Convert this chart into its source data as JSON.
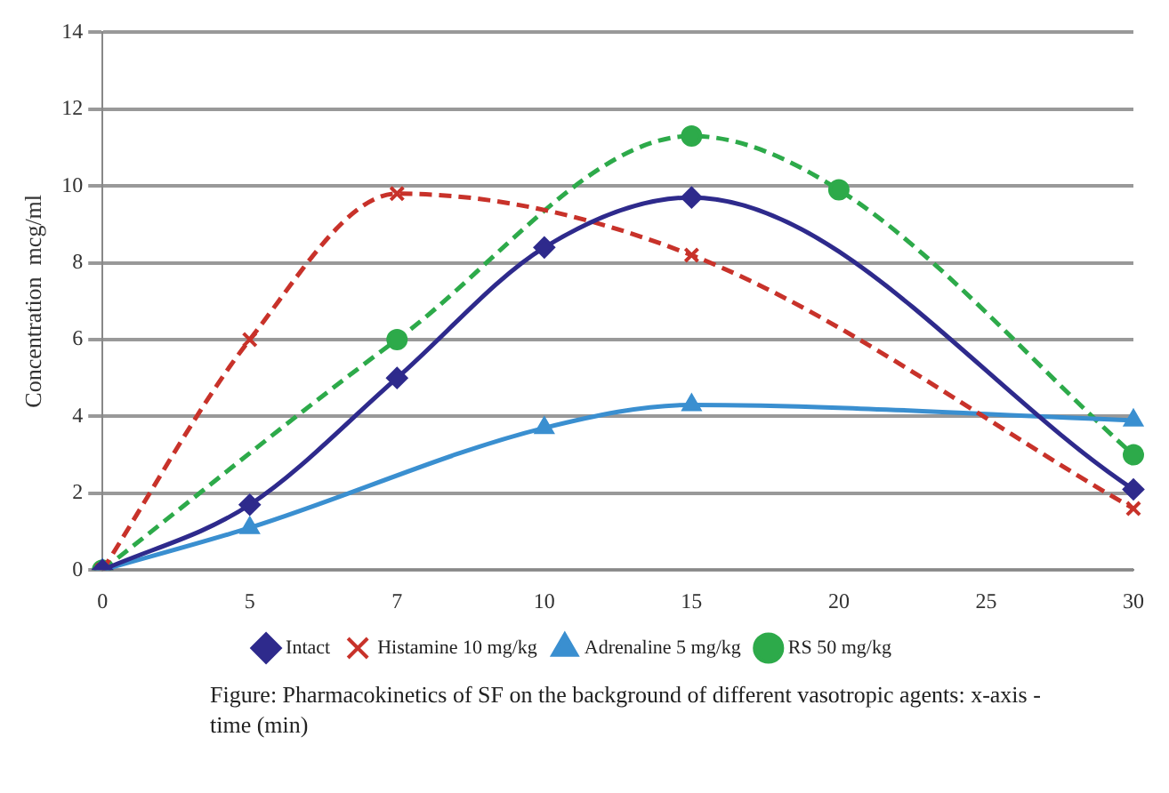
{
  "chart_data": {
    "type": "line",
    "ylabel": "Concentration  mcg/ml",
    "categories": [
      "0",
      "5",
      "7",
      "10",
      "15",
      "20",
      "25",
      "30"
    ],
    "series": [
      {
        "name": "Intact",
        "color": "#2e2a8c",
        "marker": "diamond",
        "line_style": "solid",
        "values": [
          0,
          1.7,
          5.0,
          8.4,
          9.7,
          null,
          null,
          2.1
        ]
      },
      {
        "name": "Histamine 10 mg/kg",
        "color": "#c8322a",
        "marker": "cross",
        "line_style": "dashed",
        "values": [
          0,
          6.0,
          9.8,
          null,
          8.2,
          null,
          null,
          1.6
        ]
      },
      {
        "name": "Adrenaline 5 mg/kg",
        "color": "#3a8fd0",
        "marker": "triangle",
        "line_style": "solid",
        "values": [
          0,
          1.1,
          null,
          3.7,
          4.3,
          null,
          null,
          3.9
        ]
      },
      {
        "name": "RS 50 mg/kg",
        "color": "#2daa4a",
        "marker": "circle",
        "line_style": "dashed",
        "values": [
          0,
          null,
          6.0,
          null,
          11.3,
          9.9,
          null,
          3.0
        ]
      }
    ],
    "ylim": [
      0,
      14
    ],
    "yticks": [
      0,
      2,
      4,
      6,
      8,
      10,
      12,
      14
    ],
    "grid": "y",
    "legend": "bottom",
    "annotations": [
      "Figure: Pharmacokinetics of SF on the background of different vasotropic agents:  x-axis - time (min)"
    ]
  }
}
